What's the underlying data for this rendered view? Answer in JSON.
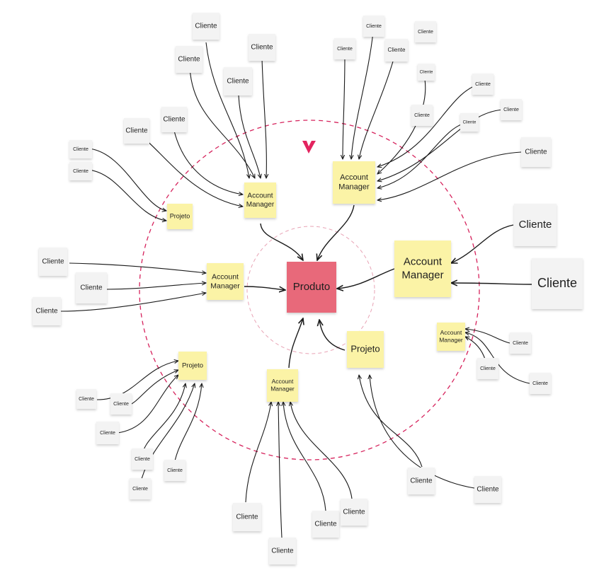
{
  "colors": {
    "cliente_note": "#f3f3f3",
    "am_note": "#fbf3a6",
    "produto_note": "#e8697a",
    "ring_dashed": "#d6225c",
    "inner_ring": "#e8a3b5",
    "arrow": "#1a1a1a",
    "logo": "#e3245f"
  },
  "icons": {
    "logo": "brand-logo-icon"
  },
  "labels": {
    "produto": "Produto",
    "account_manager_line1": "Account",
    "account_manager_line2": "Manager",
    "projeto": "Projeto",
    "cliente": "Cliente"
  }
}
